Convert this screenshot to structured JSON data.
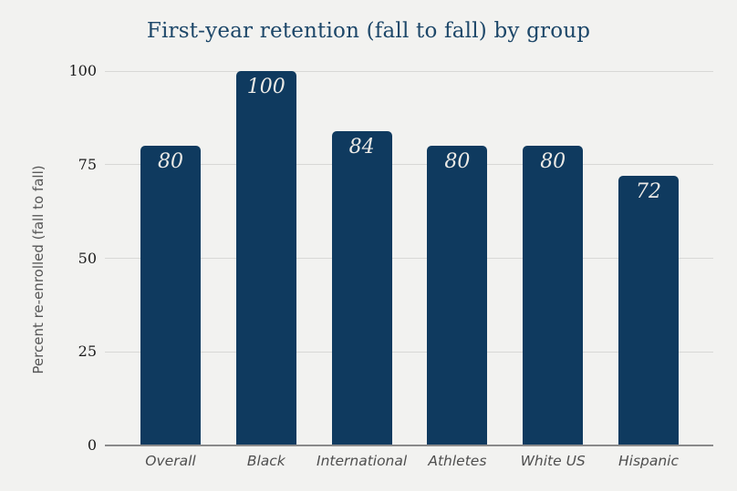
{
  "chart_data": {
    "type": "bar",
    "title": "First-year retention (fall to fall) by group",
    "xlabel": "",
    "ylabel": "Percent re-enrolled (fall to fall)",
    "categories": [
      "Overall",
      "Black",
      "International",
      "Athletes",
      "White US",
      "Hispanic"
    ],
    "values": [
      80,
      100,
      84,
      80,
      80,
      72
    ],
    "value_labels": [
      "80",
      "100",
      "84",
      "80",
      "80",
      "72"
    ],
    "yticks": [
      0,
      25,
      50,
      75,
      100
    ],
    "ylim": [
      0,
      100
    ],
    "grid": true,
    "legend_position": "none"
  },
  "colors": {
    "background": "#f2f2f0",
    "bar_fill": "#0f3a5f",
    "title_text": "#1d4769",
    "gridline": "#d8d8d6",
    "axis_line": "#8a8a8a",
    "value_label_text": "#eceae6",
    "ytick_text": "#1c1c1c",
    "xtick_text": "#4f4f4f",
    "y_axis_title_text": "#565656"
  }
}
